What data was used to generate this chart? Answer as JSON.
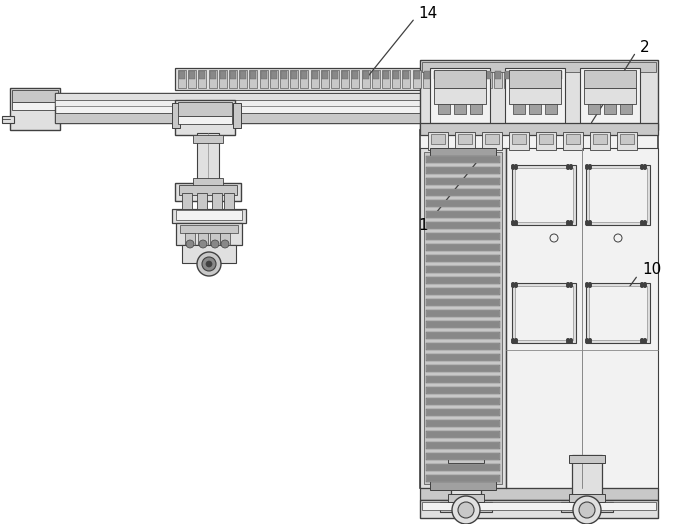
{
  "bg_color": "#ffffff",
  "lc": "#404040",
  "fc_light": "#f2f2f2",
  "fc_mid": "#e0e0e0",
  "fc_dark": "#c8c8c8",
  "fc_vdark": "#a0a0a0",
  "fc_chain": "#888888",
  "label_fontsize": 11,
  "label_color": "#000000",
  "figsize": [
    6.91,
    5.24
  ],
  "dpi": 100
}
